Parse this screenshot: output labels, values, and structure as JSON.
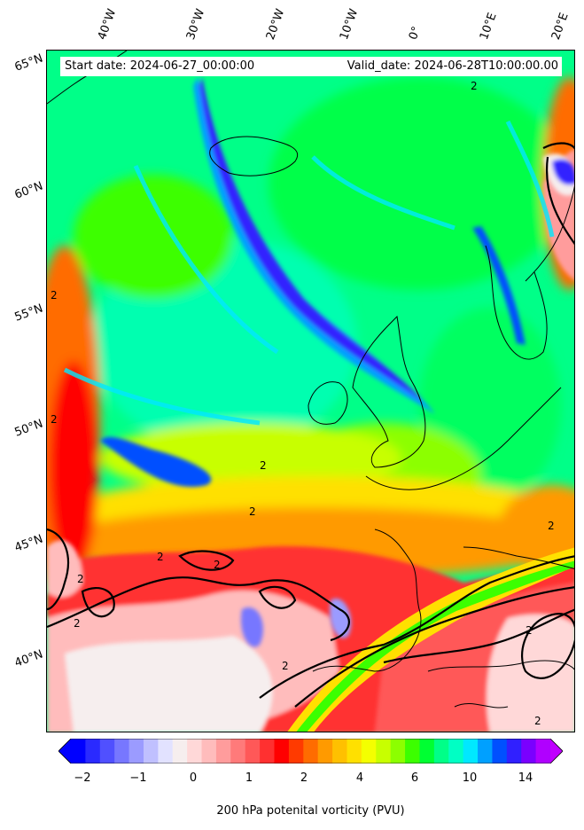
{
  "map": {
    "start_date": "Start date: 2024-06-27_00:00:00",
    "valid_date": "Valid_date: 2024-06-28T10:00:00.00",
    "lon_labels": [
      "40°W",
      "30°W",
      "20°W",
      "10°W",
      "0°",
      "10°E",
      "20°E"
    ],
    "lat_labels": [
      "65°N",
      "60°N",
      "55°N",
      "50°N",
      "45°N",
      "40°N"
    ],
    "contour_level_label": "2"
  },
  "colorbar": {
    "label": "200 hPa potenital vorticity (PVU)",
    "ticks": [
      "−2",
      "−1",
      "0",
      "1",
      "2",
      "4",
      "6",
      "10",
      "14"
    ],
    "colors": [
      "#0000ff",
      "#2a2aff",
      "#5050ff",
      "#7777ff",
      "#9b9bff",
      "#c0c0ff",
      "#e2e2ff",
      "#f6eeee",
      "#ffd8d8",
      "#ffbcbc",
      "#ff9c9c",
      "#ff7a7a",
      "#ff5858",
      "#ff3030",
      "#ff0000",
      "#ff3a00",
      "#ff6c00",
      "#ff9a00",
      "#ffc000",
      "#ffe000",
      "#f4ff00",
      "#c8ff00",
      "#8cff00",
      "#3cff00",
      "#00ff32",
      "#00ff88",
      "#00ffc4",
      "#00e8ff",
      "#00a0ff",
      "#0050ff",
      "#3020ff",
      "#7a00ff",
      "#b000ff"
    ],
    "under_color": "#0000ff",
    "over_color": "#c000ff"
  }
}
